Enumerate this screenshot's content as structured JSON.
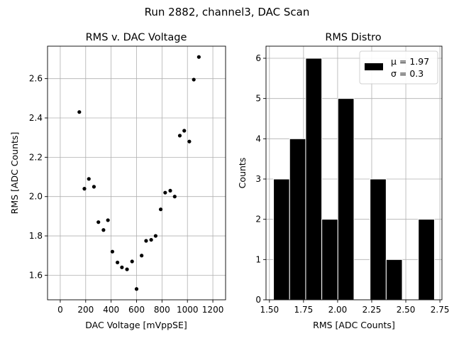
{
  "suptitle": "Run 2882, channel3, DAC Scan",
  "chart_data": [
    {
      "type": "scatter",
      "title": "RMS v. DAC Voltage",
      "xlabel": "DAC Voltage [mVppSE]",
      "ylabel": "RMS [ADC Counts]",
      "xlim": [
        -100,
        1300
      ],
      "ylim": [
        1.475,
        2.765
      ],
      "xticks": [
        0,
        200,
        400,
        600,
        800,
        1000,
        1200
      ],
      "xtick_labels": [
        "0",
        "200",
        "400",
        "600",
        "800",
        "1000",
        "1200"
      ],
      "yticks": [
        1.6,
        1.8,
        2.0,
        2.2,
        2.4,
        2.6
      ],
      "ytick_labels": [
        "1.6",
        "1.8",
        "2.0",
        "2.2",
        "2.4",
        "2.6"
      ],
      "grid": true,
      "marker_color": "#000000",
      "points": [
        {
          "x": 150,
          "y": 2.43
        },
        {
          "x": 190,
          "y": 2.04
        },
        {
          "x": 225,
          "y": 2.09
        },
        {
          "x": 265,
          "y": 2.05
        },
        {
          "x": 300,
          "y": 1.87
        },
        {
          "x": 340,
          "y": 1.83
        },
        {
          "x": 375,
          "y": 1.88
        },
        {
          "x": 410,
          "y": 1.72
        },
        {
          "x": 450,
          "y": 1.665
        },
        {
          "x": 485,
          "y": 1.64
        },
        {
          "x": 525,
          "y": 1.63
        },
        {
          "x": 565,
          "y": 1.67
        },
        {
          "x": 600,
          "y": 1.53
        },
        {
          "x": 640,
          "y": 1.7
        },
        {
          "x": 675,
          "y": 1.775
        },
        {
          "x": 715,
          "y": 1.78
        },
        {
          "x": 750,
          "y": 1.8
        },
        {
          "x": 790,
          "y": 1.935
        },
        {
          "x": 825,
          "y": 2.02
        },
        {
          "x": 865,
          "y": 2.03
        },
        {
          "x": 900,
          "y": 2.0
        },
        {
          "x": 940,
          "y": 2.31
        },
        {
          "x": 975,
          "y": 2.335
        },
        {
          "x": 1015,
          "y": 2.28
        },
        {
          "x": 1050,
          "y": 2.595
        },
        {
          "x": 1090,
          "y": 2.71
        }
      ]
    },
    {
      "type": "bar",
      "title": "RMS Distro",
      "xlabel": "RMS [ADC Counts]",
      "ylabel": "Counts",
      "xlim": [
        1.475,
        2.765
      ],
      "ylim": [
        0,
        6.3
      ],
      "xticks": [
        1.5,
        1.75,
        2.0,
        2.25,
        2.5,
        2.75
      ],
      "xtick_labels": [
        "1.50",
        "1.75",
        "2.00",
        "2.25",
        "2.50",
        "2.75"
      ],
      "yticks": [
        0,
        1,
        2,
        3,
        4,
        5,
        6
      ],
      "ytick_labels": [
        "0",
        "1",
        "2",
        "3",
        "4",
        "5",
        "6"
      ],
      "grid": true,
      "bar_color": "#000000",
      "bins": [
        {
          "x0": 1.53,
          "x1": 1.648,
          "count": 3
        },
        {
          "x0": 1.648,
          "x1": 1.766,
          "count": 4
        },
        {
          "x0": 1.766,
          "x1": 1.884,
          "count": 6
        },
        {
          "x0": 1.884,
          "x1": 2.002,
          "count": 2
        },
        {
          "x0": 2.002,
          "x1": 2.12,
          "count": 5
        },
        {
          "x0": 2.12,
          "x1": 2.238,
          "count": 0
        },
        {
          "x0": 2.238,
          "x1": 2.356,
          "count": 3
        },
        {
          "x0": 2.356,
          "x1": 2.474,
          "count": 1
        },
        {
          "x0": 2.474,
          "x1": 2.592,
          "count": 0
        },
        {
          "x0": 2.592,
          "x1": 2.71,
          "count": 2
        }
      ],
      "legend": {
        "placement": "top-right",
        "line1": "μ = 1.97",
        "line2": "σ = 0.3"
      }
    }
  ]
}
